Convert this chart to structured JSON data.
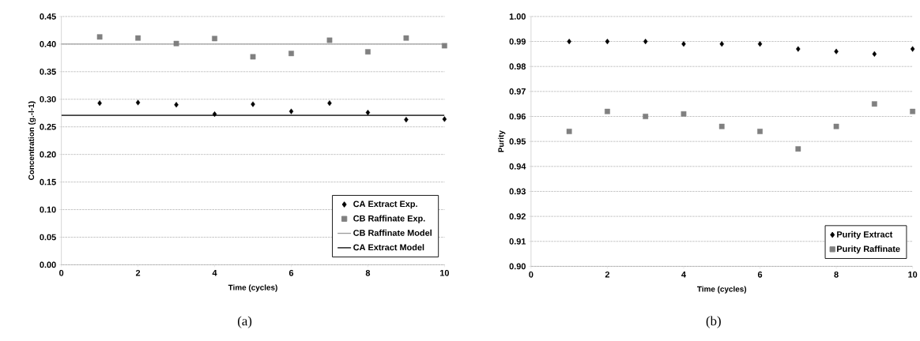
{
  "chart_data": [
    {
      "type": "scatter",
      "xlabel": "Time (cycles)",
      "ylabel": "Concentration (g.-l-1)",
      "annotations": [
        "(a)"
      ],
      "x": [
        1,
        2,
        3,
        4,
        5,
        6,
        7,
        8,
        9,
        10
      ],
      "series": [
        {
          "name": "CA Extract Exp.",
          "color": "#000000",
          "marker": "diamond",
          "values": [
            0.293,
            0.294,
            0.29,
            0.273,
            0.291,
            0.278,
            0.293,
            0.276,
            0.263,
            0.264
          ]
        },
        {
          "name": "CB Raffinate Exp.",
          "color": "#808080",
          "marker": "square",
          "values": [
            0.413,
            0.411,
            0.401,
            0.41,
            0.377,
            0.383,
            0.407,
            0.386,
            0.411,
            0.397
          ]
        }
      ],
      "ref_lines": [
        {
          "axis": "y",
          "value": 0.4,
          "label": "CB Raffinate Model",
          "color": "#999999"
        },
        {
          "axis": "y",
          "value": 0.271,
          "label": "CA Extract Model",
          "color": "#000000"
        }
      ],
      "xlim": [
        0,
        10
      ],
      "xticks": [
        0,
        2,
        4,
        6,
        8,
        10
      ],
      "ylim": [
        0,
        0.45
      ],
      "yticks": [
        {
          "value": 0,
          "label": "0.00"
        },
        0.05,
        {
          "value": 0.1,
          "label": "0.10"
        },
        0.15,
        {
          "value": 0.2,
          "label": "0.20"
        },
        0.25,
        {
          "value": 0.3,
          "label": "0.30"
        },
        0.35,
        {
          "value": 0.4,
          "label": "0.40"
        },
        0.45
      ],
      "grid": "y",
      "legend": "bottom right"
    },
    {
      "type": "scatter",
      "xlabel": "Time (cycles)",
      "ylabel": "Purity",
      "annotations": [
        "(b)"
      ],
      "x": [
        1,
        2,
        3,
        4,
        5,
        6,
        7,
        8,
        9,
        10
      ],
      "series": [
        {
          "name": "Purity Extract",
          "color": "#000000",
          "marker": "diamond",
          "values": [
            0.99,
            0.99,
            0.99,
            0.989,
            0.989,
            0.989,
            0.987,
            0.986,
            0.985,
            0.987
          ]
        },
        {
          "name": "Purity Raffinate",
          "color": "#808080",
          "marker": "square",
          "values": [
            0.954,
            0.962,
            0.96,
            0.961,
            0.956,
            0.954,
            0.947,
            0.956,
            0.965,
            0.962
          ]
        }
      ],
      "xlim": [
        0,
        10
      ],
      "xticks": [
        0,
        2,
        4,
        6,
        8,
        10
      ],
      "ylim": [
        0.9,
        1.0
      ],
      "yticks": [
        {
          "value": 0.9,
          "label": "0.90"
        },
        0.91,
        0.92,
        0.93,
        0.94,
        0.95,
        0.96,
        0.97,
        0.98,
        0.99,
        {
          "value": 1.0,
          "label": "1.00"
        }
      ],
      "grid": "y",
      "legend": "bottom right"
    }
  ]
}
